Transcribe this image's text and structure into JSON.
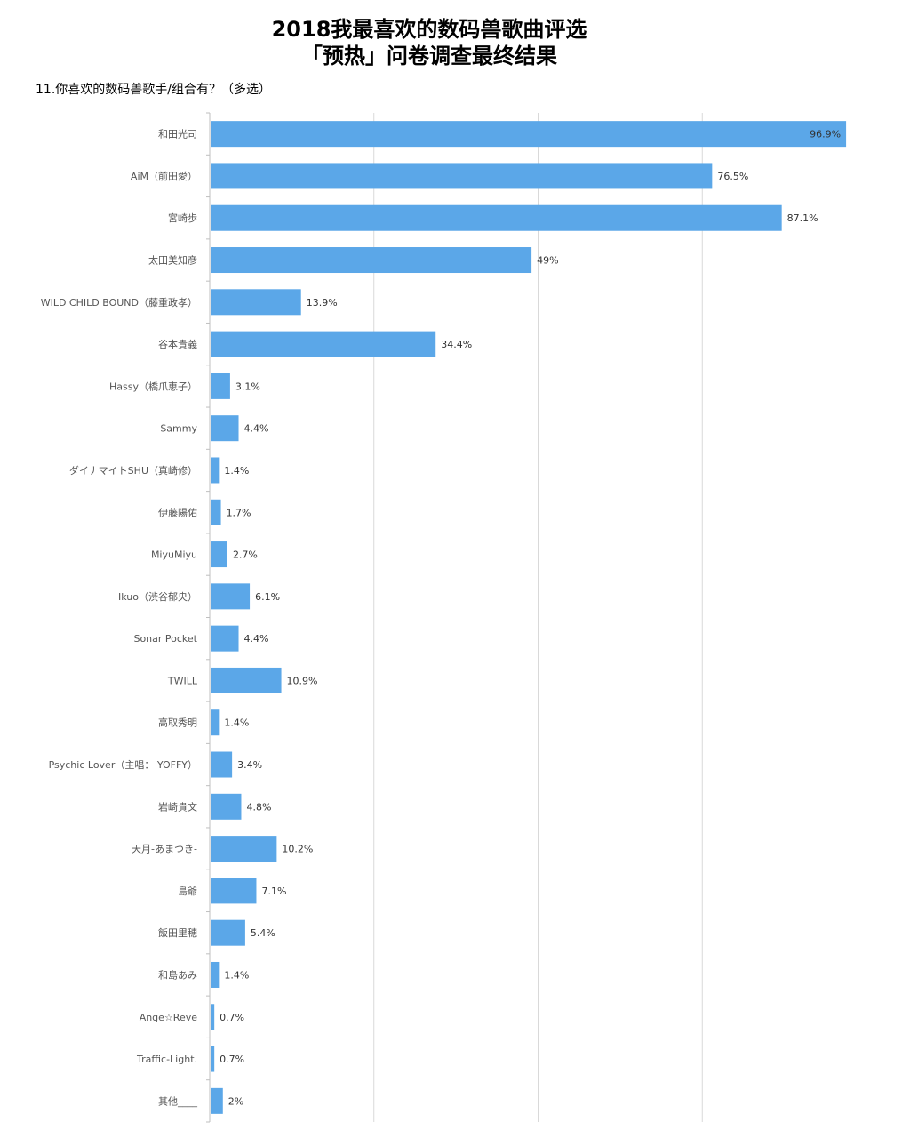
{
  "header": {
    "title_line1": "2018我最喜欢的数码兽歌曲评选",
    "title_line2": "「预热」问卷调查最终结果",
    "question": "11.你喜欢的数码兽歌手/组合有？（多选）"
  },
  "colors": {
    "bar": "#5ba7e8",
    "grid": "#d9d9d9",
    "axis": "#bfbfbf"
  },
  "chart_data": {
    "type": "bar",
    "orientation": "horizontal",
    "unit": "%",
    "xlim": [
      0,
      100
    ],
    "grid": true,
    "categories": [
      "和田光司",
      "AiM（前田愛）",
      "宮崎歩",
      "太田美知彦",
      "WILD CHILD BOUND（藤重政孝）",
      "谷本貴義",
      "Hassy（橋爪恵子）",
      "Sammy",
      "ダイナマイトSHU（真崎修）",
      "伊藤陽佑",
      "MiyuMiyu",
      "Ikuo（渋谷郁央）",
      "Sonar Pocket",
      "TWILL",
      "高取秀明",
      "Psychic Lover（主唱： YOFFY）",
      "岩崎貴文",
      "天月-あまつき-",
      "島爺",
      "飯田里穂",
      "和島あみ",
      "Ange☆Reve",
      "Traffic-Light.",
      "其他____"
    ],
    "values": [
      96.9,
      76.5,
      87.1,
      49,
      13.9,
      34.4,
      3.1,
      4.4,
      1.4,
      1.7,
      2.7,
      6.1,
      4.4,
      10.9,
      1.4,
      3.4,
      4.8,
      10.2,
      7.1,
      5.4,
      1.4,
      0.7,
      0.7,
      2
    ],
    "value_labels": [
      "96.9%",
      "76.5%",
      "87.1%",
      "49%",
      "13.9%",
      "34.4%",
      "3.1%",
      "4.4%",
      "1.4%",
      "1.7%",
      "2.7%",
      "6.1%",
      "4.4%",
      "10.9%",
      "1.4%",
      "3.4%",
      "4.8%",
      "10.2%",
      "7.1%",
      "5.4%",
      "1.4%",
      "0.7%",
      "0.7%",
      "2%"
    ]
  }
}
